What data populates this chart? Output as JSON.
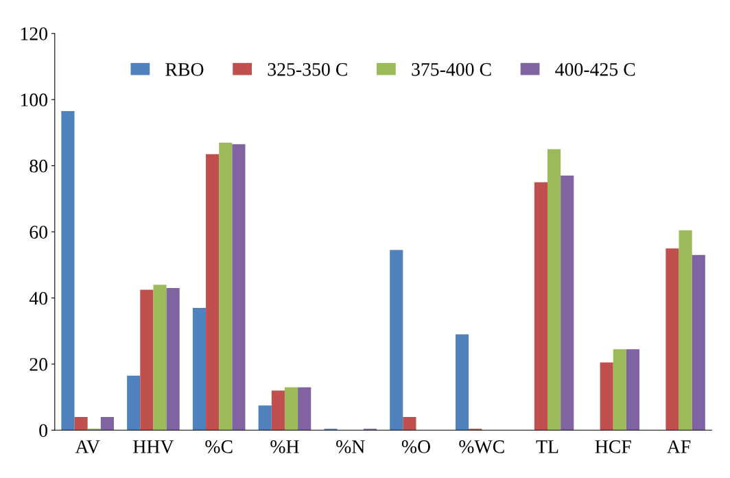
{
  "chart_data": {
    "type": "bar",
    "categories": [
      "AV",
      "HHV",
      "%C",
      "%H",
      "%N",
      "%O",
      "%WC",
      "TL",
      "HCF",
      "AF"
    ],
    "series": [
      {
        "name": "RBO",
        "color": "#4f81bd",
        "values": [
          96.5,
          16.5,
          37,
          7.5,
          0.4,
          54.5,
          29,
          0,
          0,
          0
        ]
      },
      {
        "name": "325-350 C",
        "color": "#c0504d",
        "values": [
          4,
          42.5,
          83.5,
          12,
          0,
          4,
          0.4,
          75,
          20.5,
          55
        ]
      },
      {
        "name": "375-400 C",
        "color": "#9bbb59",
        "values": [
          0.5,
          44,
          87,
          13,
          0,
          0,
          0,
          85,
          24.5,
          60.5
        ]
      },
      {
        "name": "400-425 C",
        "color": "#8064a2",
        "values": [
          4,
          43,
          86.5,
          13,
          0.4,
          0,
          0,
          77,
          24.5,
          53
        ]
      }
    ],
    "ylim": [
      0,
      120
    ],
    "yticks": [
      0,
      20,
      40,
      60,
      80,
      100,
      120
    ],
    "grid": false,
    "legend": "top"
  }
}
